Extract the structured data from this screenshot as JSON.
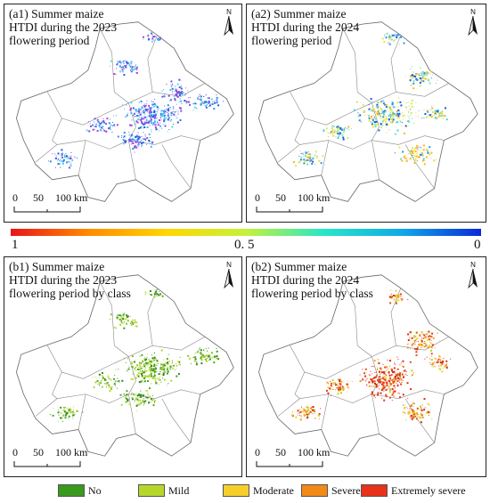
{
  "panels": [
    {
      "id": "a1",
      "title": "(a1) Summer maize\nHTDI during the 2023\nflowering period",
      "scale": {
        "zero": "0",
        "mid": "50",
        "end": "100 km"
      }
    },
    {
      "id": "a2",
      "title": "(a2) Summer maize\nHTDI during the 2024\nflowering period",
      "scale": {
        "zero": "0",
        "mid": "50",
        "end": "100 km"
      }
    },
    {
      "id": "b1",
      "title": "(b1) Summer maize\nHTDI during the 2023\nflowering period by class",
      "scale": {
        "zero": "0",
        "mid": "50",
        "end": "100 km"
      }
    },
    {
      "id": "b2",
      "title": "(b2) Summer maize\nHTDI during the 2024\nflowering period by class",
      "scale": {
        "zero": "0",
        "mid": "50",
        "end": "100 km"
      }
    }
  ],
  "north_label": "N",
  "colorbar": {
    "left": "1",
    "mid": "0. 5",
    "right": "0",
    "stops": [
      "#e8141a",
      "#ff8c00",
      "#ffd700",
      "#c5f23a",
      "#27e6c8",
      "#10a8e8",
      "#0a2ad6"
    ]
  },
  "legend": [
    {
      "label": "No",
      "color": "#3a9a1e"
    },
    {
      "label": "Mild",
      "color": "#b6d72a"
    },
    {
      "label": "Moderate",
      "color": "#f7cf2b"
    },
    {
      "label": "Severe",
      "color": "#f28a18"
    },
    {
      "label": "Extremely severe",
      "color": "#e8321a"
    }
  ],
  "pixel_colors": {
    "a1": [
      "#1a5ae0",
      "#2b8ff0",
      "#46b8f5",
      "#5fd6ea",
      "#7d4fe0",
      "#c43fd6",
      "#3a6fe8"
    ],
    "a2": [
      "#1a5ae0",
      "#2b8ff0",
      "#46d0e0",
      "#7be3b0",
      "#c8ee5a",
      "#f4e23a",
      "#f7b32c"
    ],
    "b1": [
      "#3a9a1e",
      "#4caa22",
      "#8cc227",
      "#b6d72a",
      "#c9e040",
      "#2f8418"
    ],
    "b2": [
      "#b6d72a",
      "#f7cf2b",
      "#f2a91e",
      "#f28a18",
      "#e8501a",
      "#e8321a",
      "#d62a14"
    ]
  }
}
